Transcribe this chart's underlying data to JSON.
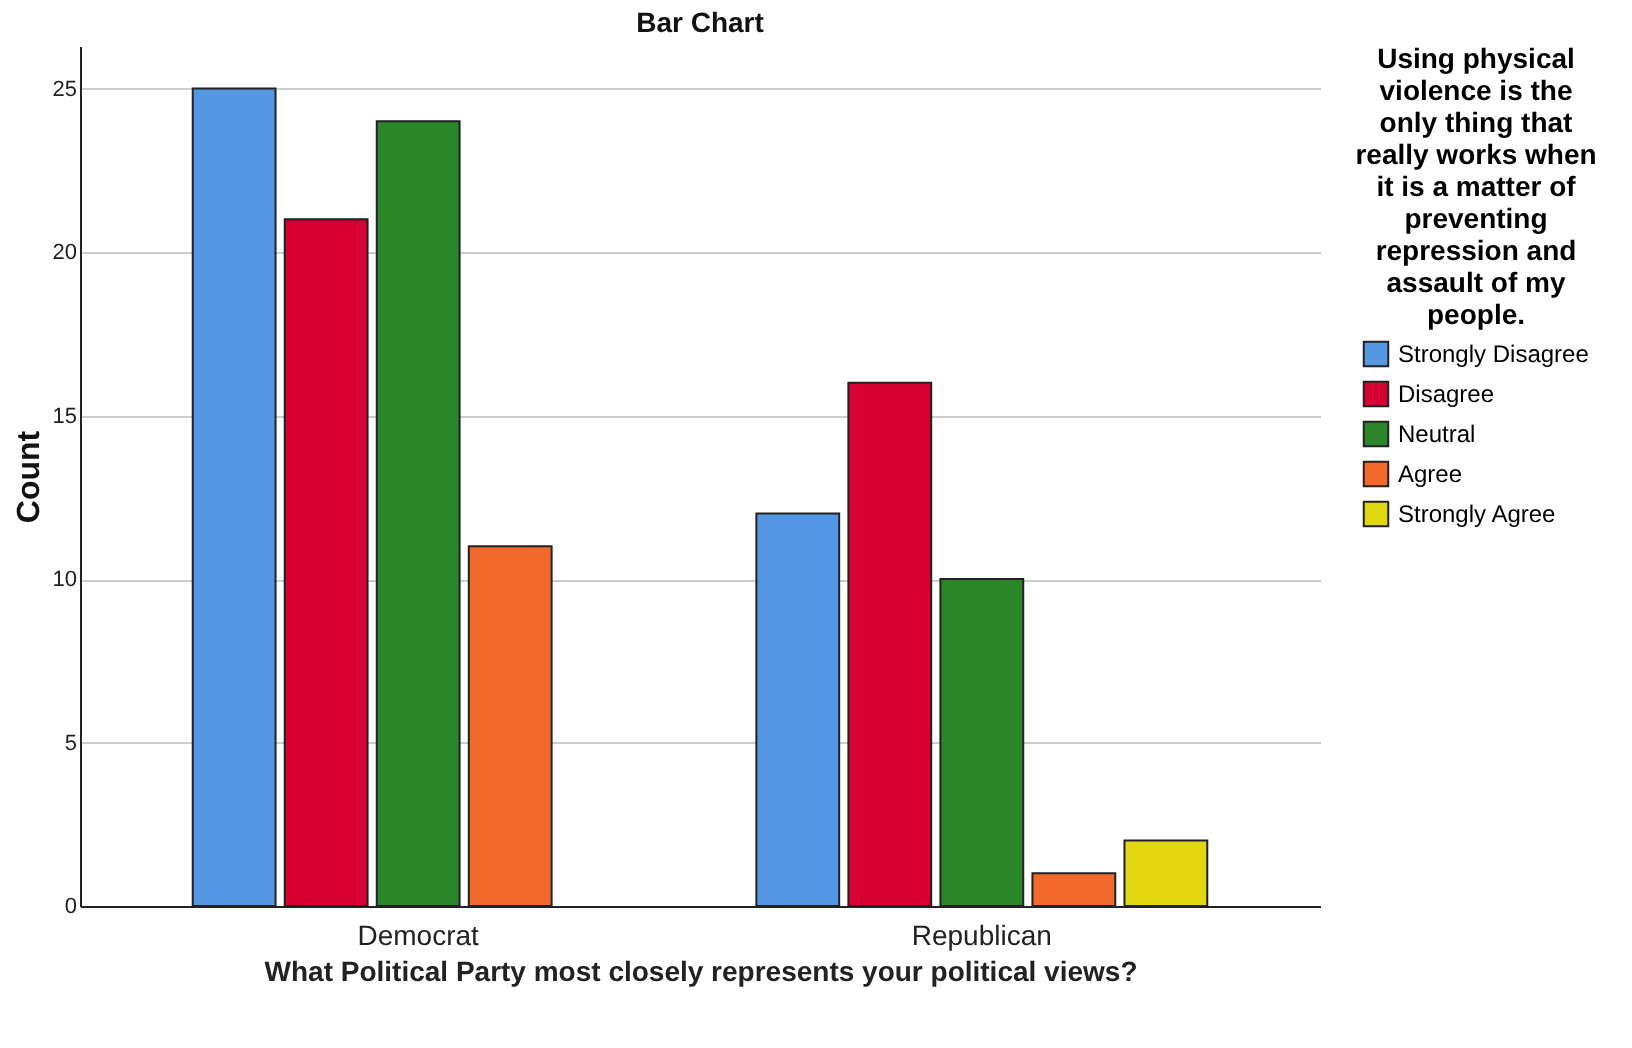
{
  "chart_data": {
    "type": "bar",
    "title": "Bar Chart",
    "xlabel": "What Political Party most closely represents your political views?",
    "ylabel": "Count",
    "legend_title": "Using physical violence is the only thing that really works when it is a matter of preventing repression and assault of my people.",
    "categories": [
      "Democrat",
      "Republican"
    ],
    "series": [
      {
        "name": "Strongly Disagree",
        "color": "#5497e3",
        "values": [
          25,
          12
        ]
      },
      {
        "name": "Disagree",
        "color": "#d60032",
        "values": [
          21,
          16
        ]
      },
      {
        "name": "Neutral",
        "color": "#2a8629",
        "values": [
          24,
          10
        ]
      },
      {
        "name": "Agree",
        "color": "#f26a2b",
        "values": [
          11,
          1
        ]
      },
      {
        "name": "Strongly Agree",
        "color": "#e2d811",
        "values": [
          null,
          2
        ]
      }
    ],
    "ylim": [
      0,
      26.3
    ],
    "yticks": [
      0,
      5,
      10,
      15,
      20,
      25
    ],
    "grid": "y",
    "legend": "top right"
  }
}
